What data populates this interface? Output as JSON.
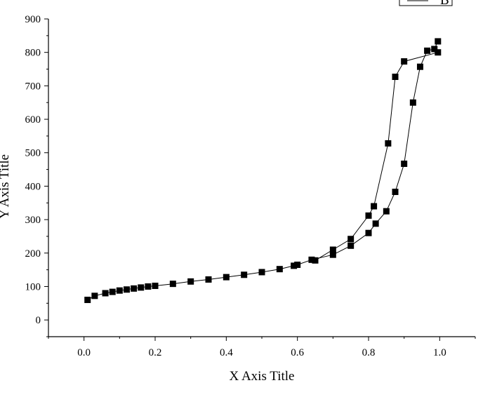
{
  "chart_data": {
    "type": "scatter",
    "title": "",
    "xlabel": "X Axis Title",
    "ylabel": "Y Axis Title",
    "xlim": [
      -0.1,
      1.1
    ],
    "ylim": [
      -50,
      900
    ],
    "xticks": [
      "0.0",
      "0.2",
      "0.4",
      "0.6",
      "0.8",
      "1.0"
    ],
    "yticks": [
      "0",
      "100",
      "200",
      "300",
      "400",
      "500",
      "600",
      "700",
      "800",
      "900"
    ],
    "grid": false,
    "legend_position": "top-right",
    "marker": "square",
    "color": "#000000",
    "series": [
      {
        "name": "B",
        "x": [
          0.01,
          0.03,
          0.06,
          0.08,
          0.1,
          0.12,
          0.14,
          0.16,
          0.18,
          0.2,
          0.25,
          0.3,
          0.35,
          0.4,
          0.45,
          0.5,
          0.55,
          0.59,
          0.6,
          0.64,
          0.7,
          0.75,
          0.8,
          0.82,
          0.85,
          0.875,
          0.9,
          0.925,
          0.945,
          0.965,
          0.985,
          0.995
        ],
        "y": [
          60,
          72,
          80,
          84,
          88,
          91,
          94,
          97,
          100,
          102,
          108,
          115,
          121,
          128,
          135,
          143,
          152,
          162,
          165,
          180,
          195,
          222,
          260,
          288,
          325,
          383,
          467,
          650,
          757,
          805,
          810,
          833
        ]
      },
      {
        "name": "",
        "x": [
          0.995,
          0.9,
          0.875,
          0.855,
          0.815,
          0.8,
          0.75,
          0.7,
          0.65
        ],
        "y": [
          800,
          773,
          727,
          528,
          340,
          312,
          242,
          210,
          178
        ]
      }
    ]
  }
}
